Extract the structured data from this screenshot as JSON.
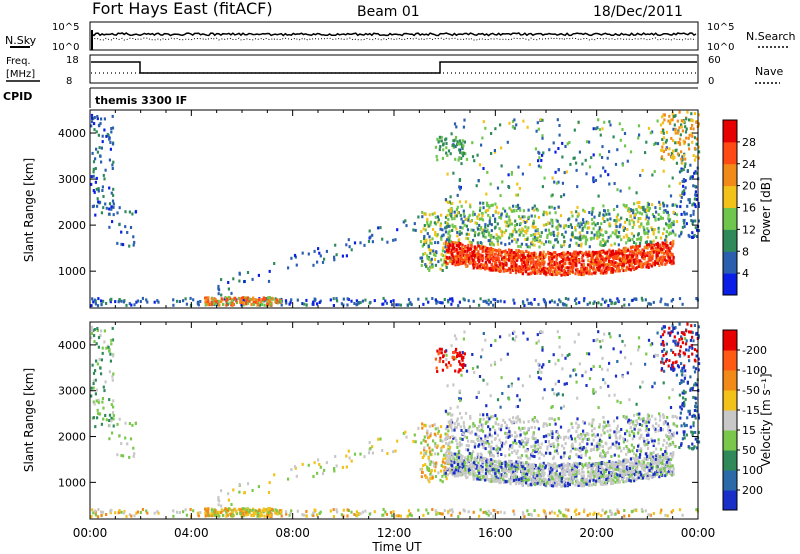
{
  "header": {
    "station": "Fort Hays East (fitACF)",
    "beam": "Beam 01",
    "date": "18/Dec/2011"
  },
  "top_panels": {
    "nsky_label": "N.Sky",
    "nsky_ticks": [
      "10^5",
      "10^0"
    ],
    "nsearch_label": "N.Search",
    "nsearch_ticks": [
      "10^5",
      "10^0"
    ],
    "freq_label_line1": "Freq.",
    "freq_label_line2": "[MHz]",
    "freq_ticks": [
      "18",
      "8"
    ],
    "nave_label": "Nave",
    "nave_ticks": [
      "60",
      "0"
    ],
    "cpid_label": "CPID",
    "cpid_text": "themis 3300 IF"
  },
  "chart_data": [
    {
      "type": "heatmap",
      "name": "power",
      "ylabel": "Slant Range [km]",
      "ylim": [
        200,
        4500
      ],
      "yticks": [
        1000,
        2000,
        3000,
        4000
      ],
      "xlim": [
        0,
        24
      ],
      "colorbar": {
        "title": "Power [dB]",
        "tick_labels": [
          "4",
          "8",
          "12",
          "16",
          "20",
          "24",
          "28"
        ],
        "colors": [
          "#0a1ee6",
          "#2a5fb0",
          "#2f8a5a",
          "#6fc64d",
          "#f2c21a",
          "#f28a1a",
          "#ff4a14",
          "#e60000"
        ]
      }
    },
    {
      "type": "heatmap",
      "name": "velocity",
      "ylabel": "Slant Range [km]",
      "ylim": [
        200,
        4500
      ],
      "yticks": [
        1000,
        2000,
        3000,
        4000
      ],
      "xlim": [
        0,
        24
      ],
      "xticks": [
        "00:00",
        "04:00",
        "08:00",
        "12:00",
        "16:00",
        "20:00",
        "00:00"
      ],
      "xlabel": "Time UT",
      "colorbar": {
        "title": "Velocity [m s⁻¹]",
        "tick_labels": [
          "200",
          "100",
          "50",
          "15",
          "-15",
          "-50",
          "-100",
          "-200"
        ],
        "colors": [
          "#1a2ec8",
          "#2a6aa8",
          "#2f8a5a",
          "#7ac84a",
          "#c8c8c8",
          "#f2c21a",
          "#f28a1a",
          "#ff5a14",
          "#e60000"
        ]
      }
    }
  ]
}
